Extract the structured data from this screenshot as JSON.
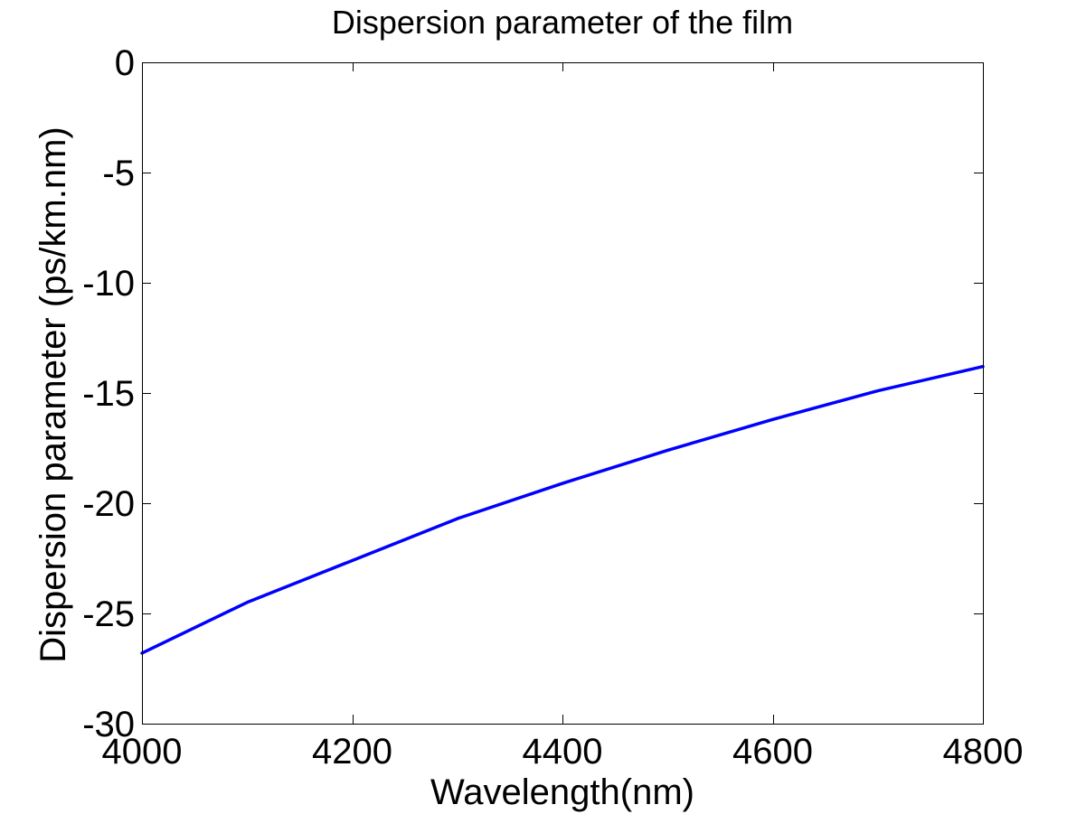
{
  "chart_data": {
    "type": "line",
    "title": "Dispersion parameter of the film",
    "xlabel": "Wavelength(nm)",
    "ylabel": "Dispersion parameter (ps/km.nm)",
    "xlim": [
      4000,
      4800
    ],
    "ylim": [
      -30,
      0
    ],
    "xticks": [
      4000,
      4200,
      4400,
      4600,
      4800
    ],
    "yticks": [
      0,
      -5,
      -10,
      -15,
      -20,
      -25,
      -30
    ],
    "grid": false,
    "legend": "none",
    "series": [
      {
        "color": "#0000ff",
        "x": [
          4000,
          4100,
          4200,
          4300,
          4400,
          4500,
          4600,
          4700,
          4800
        ],
        "y": [
          -26.8,
          -24.5,
          -22.6,
          -20.7,
          -19.1,
          -17.6,
          -16.2,
          -14.9,
          -13.8
        ]
      }
    ]
  }
}
